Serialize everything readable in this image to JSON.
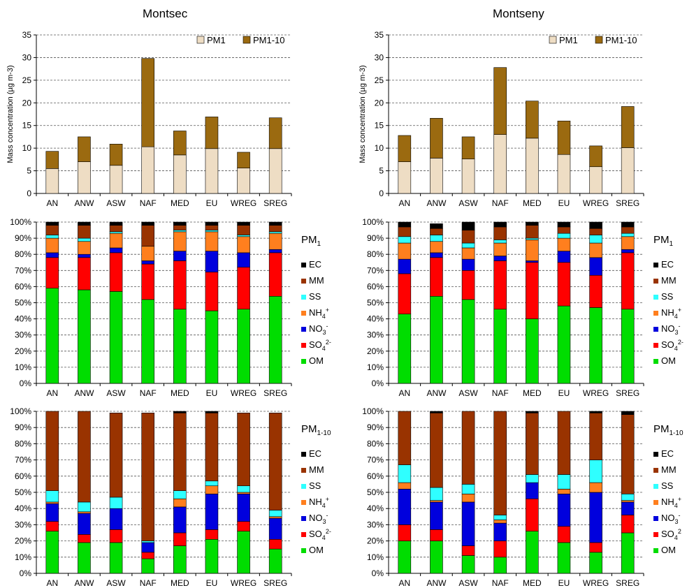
{
  "colors": {
    "PM1": "#EEDDC4",
    "PM1-10": "#9B6A10",
    "OM": "#00DD00",
    "SO4": "#FF0000",
    "NO3": "#0000DD",
    "NH4": "#FF7F1E",
    "SS": "#2FFFFF",
    "MM": "#993300",
    "EC": "#000000"
  },
  "header": {
    "left_title": "Montsec",
    "right_title": "Montseny"
  },
  "panel_titles": {
    "pm1_main": "PM",
    "pm1_sub": "1",
    "pm110_main": "PM",
    "pm110_sub": "1-10"
  },
  "legend": {
    "mass": [
      "PM1",
      "PM1-10"
    ],
    "species": [
      {
        "key": "EC",
        "main": "EC",
        "sub": "",
        "sup": ""
      },
      {
        "key": "MM",
        "main": "MM",
        "sub": "",
        "sup": ""
      },
      {
        "key": "SS",
        "main": "SS",
        "sub": "",
        "sup": ""
      },
      {
        "key": "NH4",
        "main": "NH",
        "sub": "4",
        "sup": "+"
      },
      {
        "key": "NO3",
        "main": "NO",
        "sub": "3",
        "sup": "-"
      },
      {
        "key": "SO4",
        "main": "SO",
        "sub": "4",
        "sup": "2-"
      },
      {
        "key": "OM",
        "main": "OM",
        "sub": "",
        "sup": ""
      }
    ],
    "species_montseny_pm110_so4_sup": "2"
  },
  "chart_data": [
    {
      "id": "montsec-mass",
      "type": "bar",
      "stacked": true,
      "title": "Montsec",
      "ylabel": "Mass concentration (µg m-3)",
      "ylim": [
        0,
        35
      ],
      "yticks": [
        0,
        5,
        10,
        15,
        20,
        25,
        30,
        35
      ],
      "grid": true,
      "legend_position": "top-right",
      "categories": [
        "AN",
        "ANW",
        "ASW",
        "NAF",
        "MED",
        "EU",
        "WREG",
        "SREG"
      ],
      "series": [
        {
          "name": "PM1",
          "values": [
            5.5,
            7.0,
            6.2,
            10.3,
            8.5,
            9.9,
            5.6,
            9.9
          ]
        },
        {
          "name": "PM1-10",
          "values": [
            3.8,
            5.5,
            4.7,
            19.5,
            5.3,
            7.0,
            3.5,
            6.8
          ]
        }
      ]
    },
    {
      "id": "montseny-mass",
      "type": "bar",
      "stacked": true,
      "title": "Montseny",
      "ylabel": "Mass concentration (µg m-3)",
      "ylim": [
        0,
        35
      ],
      "yticks": [
        0,
        5,
        10,
        15,
        20,
        25,
        30,
        35
      ],
      "grid": true,
      "legend_position": "top-right",
      "categories": [
        "AN",
        "ANW",
        "ASW",
        "NAF",
        "MED",
        "EU",
        "WREG",
        "SREG"
      ],
      "series": [
        {
          "name": "PM1",
          "values": [
            7.0,
            7.8,
            7.6,
            13.0,
            12.2,
            8.6,
            5.9,
            10.1
          ]
        },
        {
          "name": "PM1-10",
          "values": [
            5.8,
            8.8,
            4.9,
            14.8,
            8.2,
            7.4,
            4.6,
            9.1
          ]
        }
      ]
    },
    {
      "id": "montsec-pm1",
      "type": "bar",
      "stacked": true,
      "percent": true,
      "title": "PM1",
      "ylim": [
        0,
        100
      ],
      "yticks": [
        0,
        10,
        20,
        30,
        40,
        50,
        60,
        70,
        80,
        90,
        100
      ],
      "grid": true,
      "legend_position": "right",
      "categories": [
        "AN",
        "ANW",
        "ASW",
        "NAF",
        "MED",
        "EU",
        "WREG",
        "SREG"
      ],
      "series": [
        {
          "name": "OM",
          "values": [
            59,
            58,
            57,
            52,
            46,
            45,
            46,
            54
          ]
        },
        {
          "name": "SO4",
          "values": [
            19,
            20,
            24,
            22,
            30,
            24,
            26,
            27
          ]
        },
        {
          "name": "NO3",
          "values": [
            3,
            2,
            3,
            2,
            6,
            13,
            9,
            2
          ]
        },
        {
          "name": "NH4",
          "values": [
            9,
            8,
            9,
            9,
            12,
            12,
            10,
            10
          ]
        },
        {
          "name": "SS",
          "values": [
            2,
            2,
            1,
            0,
            1,
            1,
            1,
            1
          ]
        },
        {
          "name": "MM",
          "values": [
            6,
            8,
            4,
            13,
            3,
            3,
            6,
            4
          ]
        },
        {
          "name": "EC",
          "values": [
            2,
            2,
            2,
            2,
            2,
            2,
            2,
            2
          ]
        }
      ]
    },
    {
      "id": "montseny-pm1",
      "type": "bar",
      "stacked": true,
      "percent": true,
      "title": "PM1",
      "ylim": [
        0,
        100
      ],
      "yticks": [
        0,
        10,
        20,
        30,
        40,
        50,
        60,
        70,
        80,
        90,
        100
      ],
      "grid": true,
      "legend_position": "right",
      "categories": [
        "AN",
        "ANW",
        "ASW",
        "NAF",
        "MED",
        "EU",
        "WREG",
        "SREG"
      ],
      "series": [
        {
          "name": "OM",
          "values": [
            43,
            54,
            52,
            46,
            40,
            48,
            47,
            46
          ]
        },
        {
          "name": "SO4",
          "values": [
            25,
            24,
            18,
            30,
            35,
            27,
            20,
            35
          ]
        },
        {
          "name": "NO3",
          "values": [
            9,
            3,
            7,
            3,
            1,
            7,
            11,
            2
          ]
        },
        {
          "name": "NH4",
          "values": [
            10,
            7,
            7,
            8,
            13,
            8,
            9,
            8
          ]
        },
        {
          "name": "SS",
          "values": [
            4,
            4,
            3,
            2,
            1,
            3,
            5,
            2
          ]
        },
        {
          "name": "MM",
          "values": [
            6,
            4,
            8,
            8,
            8,
            4,
            4,
            4
          ]
        },
        {
          "name": "EC",
          "values": [
            3,
            3,
            5,
            3,
            2,
            3,
            4,
            3
          ]
        }
      ]
    },
    {
      "id": "montsec-pm110",
      "type": "bar",
      "stacked": true,
      "percent": true,
      "title": "PM1-10",
      "ylim": [
        0,
        100
      ],
      "yticks": [
        0,
        10,
        20,
        30,
        40,
        50,
        60,
        70,
        80,
        90,
        100
      ],
      "grid": true,
      "legend_position": "right",
      "categories": [
        "AN",
        "ANW",
        "ASW",
        "NAF",
        "MED",
        "EU",
        "WREG",
        "SREG"
      ],
      "series": [
        {
          "name": "OM",
          "values": [
            26,
            19,
            19,
            9,
            17,
            21,
            26,
            15
          ]
        },
        {
          "name": "SO4",
          "values": [
            6,
            5,
            8,
            4,
            8,
            6,
            6,
            6
          ]
        },
        {
          "name": "NO3",
          "values": [
            11,
            13,
            13,
            6,
            16,
            22,
            17,
            13
          ]
        },
        {
          "name": "NH4",
          "values": [
            1,
            1,
            0,
            0,
            5,
            5,
            1,
            1
          ]
        },
        {
          "name": "SS",
          "values": [
            7,
            6,
            7,
            1,
            5,
            3,
            4,
            4
          ]
        },
        {
          "name": "MM",
          "values": [
            49,
            56,
            52,
            79,
            48,
            42,
            45,
            60
          ]
        },
        {
          "name": "EC",
          "values": [
            0,
            0,
            0,
            0,
            1,
            1,
            0,
            0
          ]
        }
      ]
    },
    {
      "id": "montseny-pm110",
      "type": "bar",
      "stacked": true,
      "percent": true,
      "title": "PM1-10",
      "ylim": [
        0,
        100
      ],
      "yticks": [
        0,
        10,
        20,
        30,
        40,
        50,
        60,
        70,
        80,
        90,
        100
      ],
      "grid": true,
      "legend_position": "right",
      "categories": [
        "AN",
        "ANW",
        "ASW",
        "NAF",
        "MED",
        "EU",
        "WREG",
        "SREG"
      ],
      "series": [
        {
          "name": "OM",
          "values": [
            20,
            20,
            11,
            10,
            26,
            19,
            13,
            25
          ]
        },
        {
          "name": "SO4",
          "values": [
            10,
            7,
            6,
            10,
            20,
            10,
            6,
            11
          ]
        },
        {
          "name": "NO3",
          "values": [
            22,
            17,
            27,
            11,
            10,
            20,
            31,
            8
          ]
        },
        {
          "name": "NH4",
          "values": [
            4,
            1,
            5,
            2,
            0,
            3,
            6,
            1
          ]
        },
        {
          "name": "SS",
          "values": [
            11,
            8,
            6,
            3,
            5,
            9,
            14,
            4
          ]
        },
        {
          "name": "MM",
          "values": [
            33,
            46,
            45,
            64,
            38,
            39,
            29,
            49
          ]
        },
        {
          "name": "EC",
          "values": [
            0,
            1,
            0,
            0,
            1,
            0,
            1,
            2
          ]
        }
      ]
    }
  ]
}
